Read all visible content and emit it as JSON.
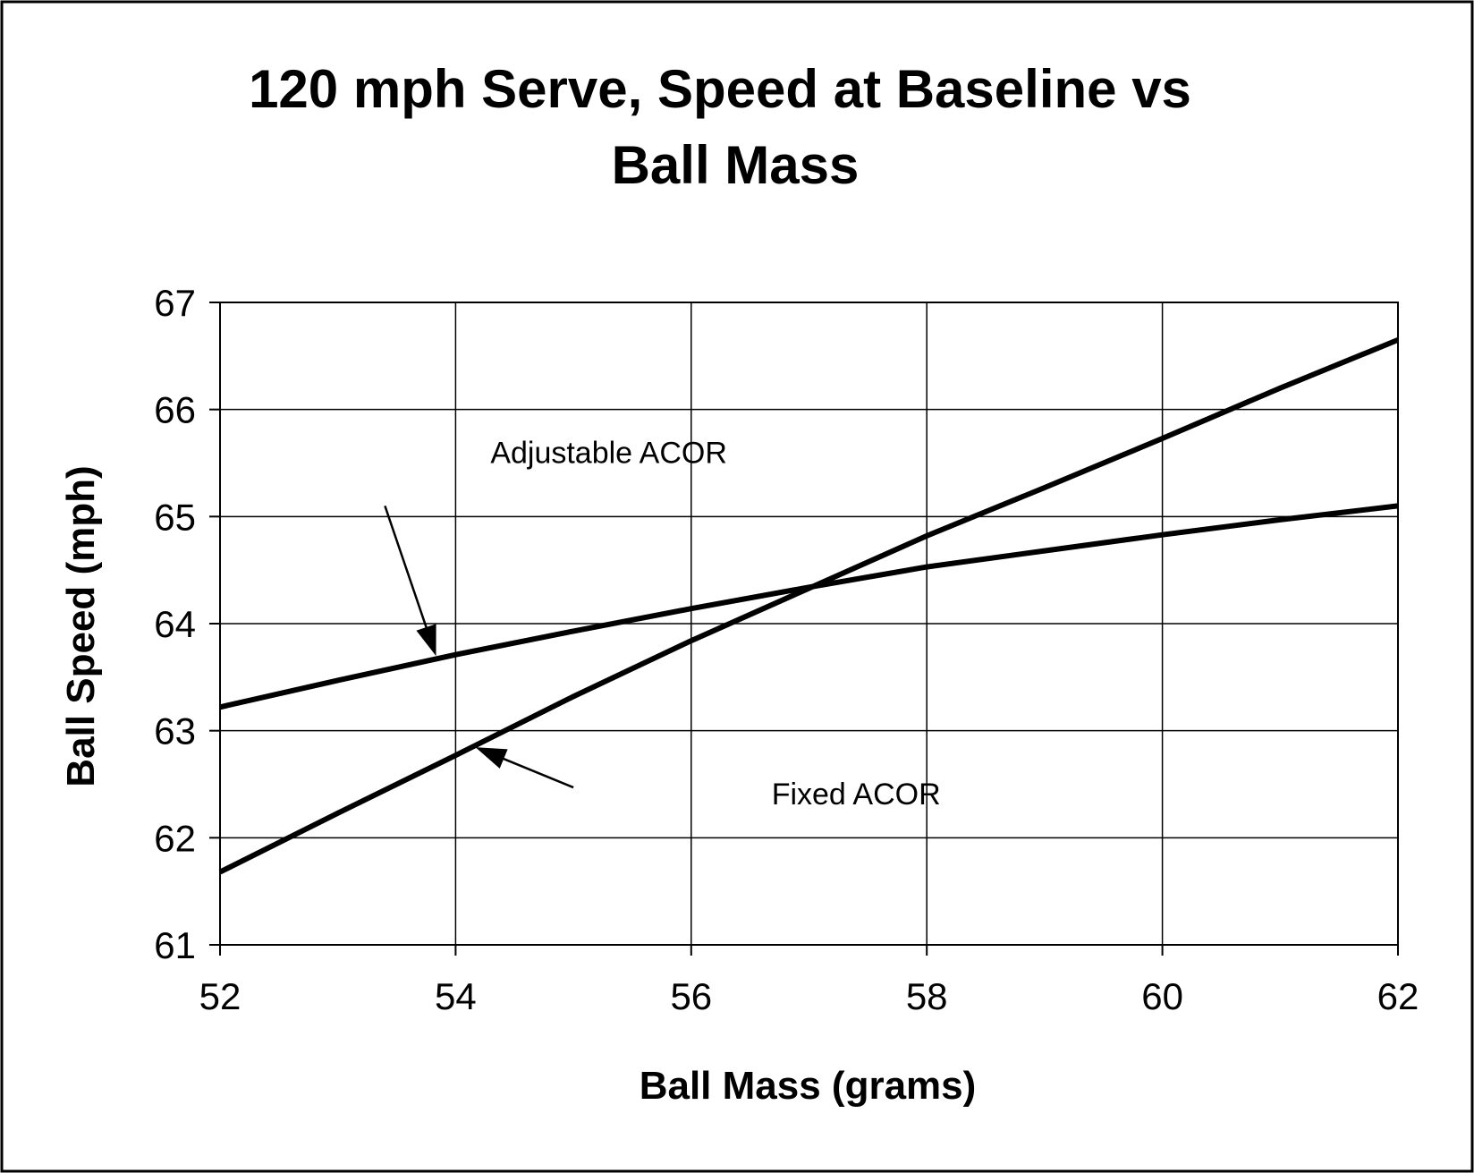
{
  "chart_data": {
    "type": "line",
    "title_lines": [
      "120 mph Serve, Speed at Baseline vs",
      "Ball Mass"
    ],
    "xlabel": "Ball Mass (grams)",
    "ylabel": "Ball Speed (mph)",
    "xlim": [
      52,
      62
    ],
    "ylim": [
      61,
      67
    ],
    "x_ticks": [
      52,
      54,
      56,
      58,
      60,
      62
    ],
    "y_ticks": [
      61,
      62,
      63,
      64,
      65,
      66,
      67
    ],
    "grid": true,
    "legend": "none",
    "series": [
      {
        "name": "Adjustable ACOR",
        "x": [
          52,
          53,
          54,
          55,
          56,
          57,
          58,
          59,
          60,
          61,
          62
        ],
        "y": [
          63.22,
          63.47,
          63.71,
          63.93,
          64.14,
          64.34,
          64.53,
          64.68,
          64.83,
          64.97,
          65.1
        ]
      },
      {
        "name": "Fixed ACOR",
        "x": [
          52,
          53,
          54,
          55,
          56,
          57,
          58,
          59,
          60,
          61,
          62
        ],
        "y": [
          61.68,
          62.23,
          62.77,
          63.32,
          63.84,
          64.33,
          64.82,
          65.27,
          65.73,
          66.2,
          66.65
        ]
      }
    ],
    "annotations": [
      {
        "text": "Adjustable ACOR",
        "series": "Adjustable ACOR",
        "label_at": [
          55.3,
          65.5
        ],
        "arrow_from": [
          53.4,
          65.1
        ],
        "arrow_to": [
          53.83,
          63.71
        ]
      },
      {
        "text": "Fixed ACOR",
        "series": "Fixed ACOR",
        "label_at": [
          57.4,
          62.31
        ],
        "arrow_from": [
          55.0,
          62.47
        ],
        "arrow_to": [
          54.18,
          62.84
        ]
      }
    ],
    "colors": {
      "background": "#ffffff",
      "line": "#000000",
      "grid": "#000000",
      "frame": "#000000"
    }
  }
}
